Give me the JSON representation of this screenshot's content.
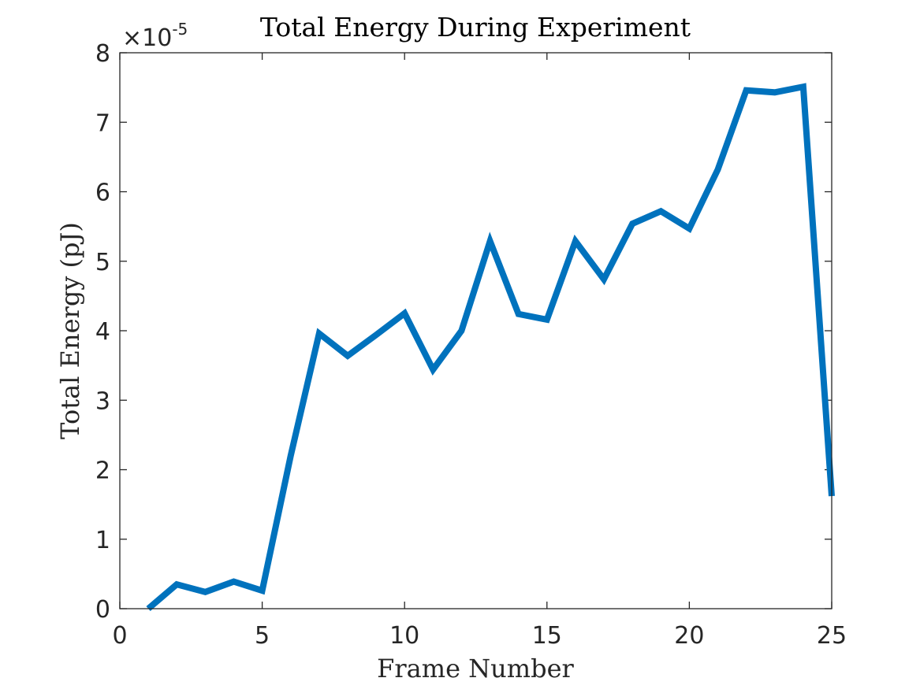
{
  "chart_data": {
    "type": "line",
    "title": "Total Energy During Experiment",
    "xlabel": "Frame Number",
    "ylabel": "Total Energy (pJ)",
    "y_exponent_base": "×10",
    "y_exponent_power": "-5",
    "xlim": [
      0,
      25
    ],
    "ylim": [
      0,
      8
    ],
    "xticks": [
      0,
      5,
      10,
      15,
      20,
      25
    ],
    "yticks": [
      0,
      1,
      2,
      3,
      4,
      5,
      6,
      7,
      8
    ],
    "grid": false,
    "legend": "none",
    "series": [
      {
        "color": "#0072bd",
        "x": [
          1,
          2,
          3,
          4,
          5,
          6,
          7,
          8,
          9,
          10,
          11,
          12,
          13,
          14,
          15,
          16,
          17,
          18,
          19,
          20,
          21,
          22,
          23,
          24,
          25
        ],
        "y": [
          0.0,
          0.35,
          0.24,
          0.39,
          0.26,
          2.2,
          3.96,
          3.64,
          3.94,
          4.25,
          3.44,
          4.0,
          5.29,
          4.24,
          4.16,
          5.29,
          4.74,
          5.54,
          5.72,
          5.47,
          6.32,
          7.46,
          7.43,
          7.51,
          1.62
        ]
      }
    ]
  }
}
